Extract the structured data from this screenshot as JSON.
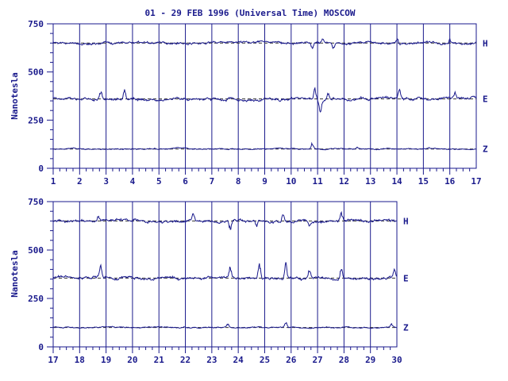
{
  "title": "01 - 29 FEB 1996 (Universal Time) MOSCOW",
  "colors": {
    "ink": "#1a1a8c",
    "trace": "#1a1a8c",
    "background": "#ffffff"
  },
  "chart_data": [
    {
      "type": "line",
      "ylabel": "Nanotesla",
      "ylim": [
        0,
        750
      ],
      "yticks": [
        "0",
        "250",
        "500",
        "750"
      ],
      "xlim": [
        1,
        17
      ],
      "xticks": [
        "1",
        "2",
        "3",
        "4",
        "5",
        "6",
        "7",
        "8",
        "9",
        "10",
        "11",
        "12",
        "13",
        "14",
        "15",
        "16",
        "17"
      ],
      "grid": "vertical day lines",
      "series": [
        {
          "name": "H",
          "baseline": 650,
          "noise": 6,
          "spikes": [
            [
              10.8,
              -35
            ],
            [
              11.2,
              20
            ],
            [
              11.6,
              -25
            ],
            [
              14.0,
              25
            ],
            [
              16.0,
              20
            ]
          ]
        },
        {
          "name": "E",
          "baseline": 360,
          "noise": 7,
          "spikes": [
            [
              2.8,
              40
            ],
            [
              3.7,
              50
            ],
            [
              10.9,
              60
            ],
            [
              11.1,
              -55
            ],
            [
              11.4,
              35
            ],
            [
              14.1,
              50
            ],
            [
              16.2,
              30
            ]
          ]
        },
        {
          "name": "Z",
          "baseline": 100,
          "noise": 3,
          "spikes": [
            [
              10.8,
              30
            ],
            [
              12.5,
              10
            ],
            [
              15.2,
              8
            ]
          ]
        }
      ]
    },
    {
      "type": "line",
      "ylabel": "Nanotesla",
      "ylim": [
        0,
        750
      ],
      "yticks": [
        "0",
        "250",
        "500",
        "750"
      ],
      "xlim": [
        17,
        30
      ],
      "xticks": [
        "17",
        "18",
        "19",
        "20",
        "21",
        "22",
        "23",
        "24",
        "25",
        "26",
        "27",
        "28",
        "29",
        "30"
      ],
      "grid": "vertical day lines",
      "series": [
        {
          "name": "H",
          "baseline": 650,
          "noise": 7,
          "spikes": [
            [
              18.7,
              25
            ],
            [
              22.3,
              35
            ],
            [
              23.7,
              -40
            ],
            [
              24.7,
              -30
            ],
            [
              25.7,
              40
            ],
            [
              26.7,
              -25
            ],
            [
              27.9,
              35
            ]
          ]
        },
        {
          "name": "E",
          "baseline": 355,
          "noise": 7,
          "spikes": [
            [
              18.8,
              55
            ],
            [
              23.7,
              50
            ],
            [
              24.8,
              70
            ],
            [
              25.8,
              85
            ],
            [
              26.7,
              45
            ],
            [
              27.9,
              60
            ],
            [
              29.9,
              40
            ]
          ]
        },
        {
          "name": "Z",
          "baseline": 100,
          "noise": 3,
          "spikes": [
            [
              23.6,
              18
            ],
            [
              25.8,
              22
            ],
            [
              29.8,
              15
            ]
          ]
        }
      ]
    }
  ]
}
